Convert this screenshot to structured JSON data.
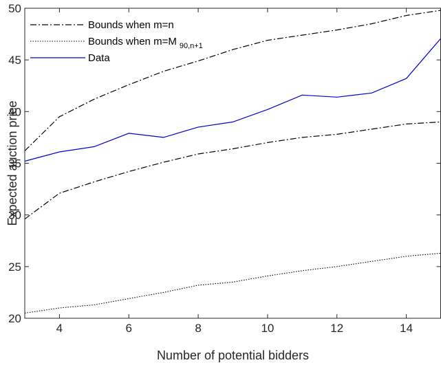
{
  "chart_data": {
    "type": "line",
    "xlabel": "Number of potential bidders",
    "ylabel": "Expected auction price",
    "xlim": [
      3,
      15
    ],
    "ylim": [
      20,
      50
    ],
    "xticks": [
      4,
      6,
      8,
      10,
      12,
      14
    ],
    "yticks": [
      20,
      25,
      30,
      35,
      40,
      45,
      50
    ],
    "grid": false,
    "legend_position": "top-left",
    "x": [
      3,
      4,
      5,
      6,
      7,
      8,
      9,
      10,
      11,
      12,
      13,
      14,
      15
    ],
    "series": [
      {
        "name": "Bounds when m=n",
        "style": "dashdot",
        "color": "#000000",
        "values": [
          36.2,
          39.5,
          41.2,
          42.6,
          43.9,
          44.9,
          46.0,
          46.9,
          47.4,
          47.9,
          48.5,
          49.3,
          49.8
        ]
      },
      {
        "name": "Bounds when m=n",
        "style": "dashdot",
        "color": "#000000",
        "legend": false,
        "values": [
          29.6,
          32.1,
          33.2,
          34.2,
          35.1,
          35.9,
          36.4,
          37.0,
          37.5,
          37.8,
          38.3,
          38.8,
          39.0
        ]
      },
      {
        "name": "Bounds when m=M",
        "name_sub": "90,n+1",
        "style": "dotted",
        "color": "#000000",
        "values": [
          20.5,
          21.0,
          21.3,
          21.9,
          22.5,
          23.2,
          23.5,
          24.1,
          24.6,
          25.0,
          25.5,
          26.0,
          26.3
        ]
      },
      {
        "name": "Data",
        "style": "solid",
        "color": "#0000cc",
        "values": [
          35.2,
          36.1,
          36.6,
          37.9,
          37.5,
          38.5,
          39.0,
          40.2,
          41.6,
          41.4,
          41.8,
          43.2,
          47.1
        ]
      }
    ]
  }
}
